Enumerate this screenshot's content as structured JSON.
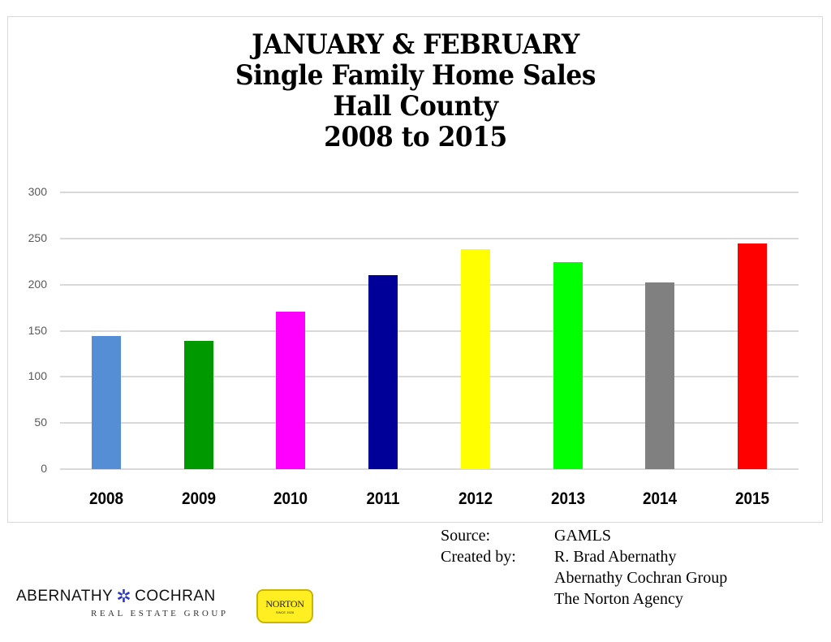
{
  "title_lines": [
    "JANUARY & FEBRUARY",
    "Single Family Home Sales",
    "Hall County",
    "2008 to 2015"
  ],
  "credits": {
    "source_label": "Source:",
    "source_value": "GAMLS",
    "created_label": "Created by:",
    "created_lines": [
      "R. Brad Abernathy",
      "Abernathy Cochran Group",
      "The Norton Agency"
    ]
  },
  "logos": {
    "abernathy_left": "ABERNATHY",
    "abernathy_right": "COCHRAN",
    "abernathy_sub": "REAL ESTATE GROUP",
    "star_icon": "✲",
    "norton_name": "NORTON",
    "norton_since": "SINCE 1926"
  },
  "chart_data": {
    "type": "bar",
    "title": "JANUARY & FEBRUARY Single Family Home Sales Hall County 2008 to 2015",
    "xlabel": "",
    "ylabel": "",
    "categories": [
      "2008",
      "2009",
      "2010",
      "2011",
      "2012",
      "2013",
      "2014",
      "2015"
    ],
    "values": [
      144,
      139,
      171,
      210,
      238,
      224,
      202,
      245
    ],
    "colors": [
      "#558ed5",
      "#009900",
      "#ff00ff",
      "#000099",
      "#ffff00",
      "#00ff00",
      "#808080",
      "#ff0000"
    ],
    "ylim": [
      0,
      300
    ],
    "yticks": [
      "0",
      "50",
      "100",
      "150",
      "200",
      "250",
      "300"
    ],
    "grid": true,
    "legend": "none"
  }
}
